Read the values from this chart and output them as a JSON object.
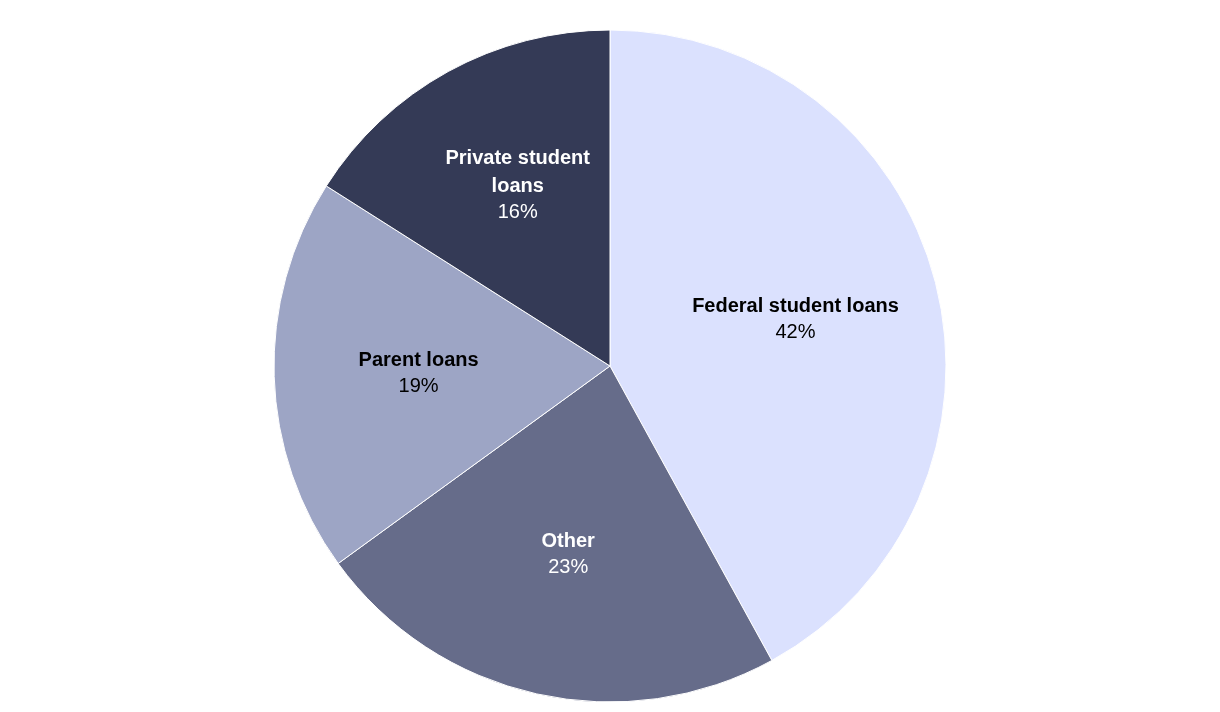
{
  "chart_data": {
    "type": "pie",
    "categories": [
      "Federal student loans",
      "Other",
      "Parent loans",
      "Private student loans"
    ],
    "values": [
      42,
      23,
      19,
      16
    ],
    "value_labels": [
      "42%",
      "23%",
      "19%",
      "16%"
    ],
    "colors": [
      "#dbe1fe",
      "#666c8a",
      "#9da5c5",
      "#343a56"
    ]
  }
}
